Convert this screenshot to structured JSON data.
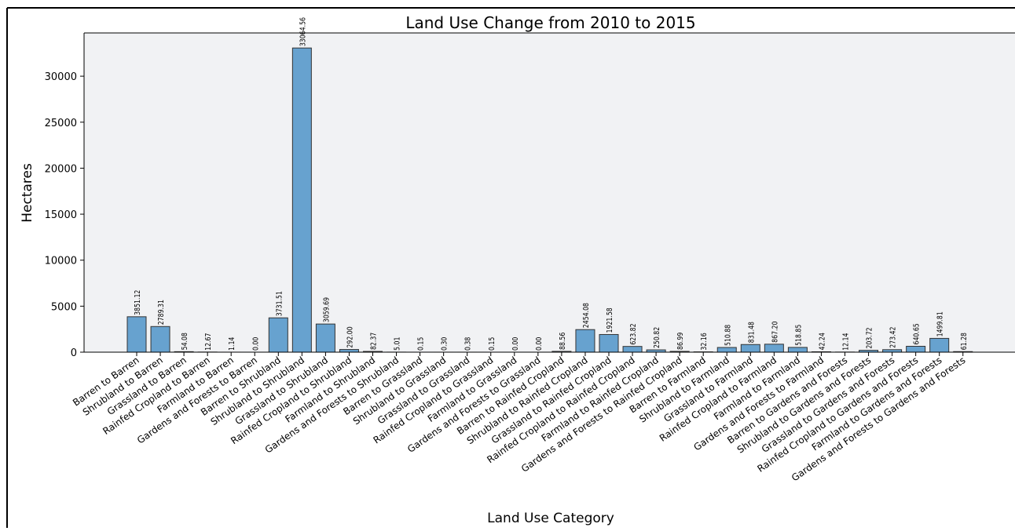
{
  "chart_data": {
    "type": "bar",
    "title": "Land Use Change from 2010 to 2015",
    "xlabel": "Land Use Category",
    "ylabel": "Hectares",
    "ylim": [
      0,
      34700
    ],
    "yticks": [
      0,
      5000,
      10000,
      15000,
      20000,
      25000,
      30000
    ],
    "grid": false,
    "bar_color": "#67a2cf",
    "bar_edge_color": "#333333",
    "plot_background": "#f1f2f4",
    "categories": [
      "Barren to Barren",
      "Shrubland to Barren",
      "Grassland to Barren",
      "Rainfed Cropland to Barren",
      "Farmland to Barren",
      "Gardens and Forests to Barren",
      "Barren to Shrubland",
      "Shrubland to Shrubland",
      "Grassland to Shrubland",
      "Rainfed Cropland to Shrubland",
      "Farmland to Shrubland",
      "Gardens and Forests to Shrubland",
      "Barren to Grassland",
      "Shrubland to Grassland",
      "Grassland to Grassland",
      "Rainfed Cropland to Grassland",
      "Farmland to Grassland",
      "Gardens and Forests to Grassland",
      "Barren to Rainfed Cropland",
      "Shrubland to Rainfed Cropland",
      "Grassland to Rainfed Cropland",
      "Rainfed Cropland to Rainfed Cropland",
      "Farmland to Rainfed Cropland",
      "Gardens and Forests to Rainfed Cropland",
      "Barren to Farmland",
      "Shrubland to Farmland",
      "Grassland to Farmland",
      "Rainfed Cropland to Farmland",
      "Farmland to Farmland",
      "Gardens and Forests to Farmland",
      "Barren to Gardens and Forests",
      "Shrubland to Gardens and Forests",
      "Grassland to Gardens and Forests",
      "Rainfed Cropland to Gardens and Forests",
      "Farmland to Gardens and Forests",
      "Gardens and Forests to Gardens and Forests"
    ],
    "values": [
      3851.12,
      2789.31,
      54.08,
      12.67,
      1.14,
      0.0,
      3731.51,
      33064.56,
      3059.69,
      292.0,
      82.37,
      5.01,
      0.15,
      0.3,
      0.38,
      0.15,
      0.0,
      0.0,
      88.56,
      2454.08,
      1921.58,
      623.82,
      250.82,
      86.99,
      32.16,
      510.88,
      831.48,
      867.2,
      518.85,
      42.24,
      12.14,
      203.72,
      273.42,
      640.65,
      1499.81,
      61.28
    ],
    "value_labels": [
      "3851.12",
      "2789.31",
      "54.08",
      "12.67",
      "1.14",
      "0.00",
      "3731.51",
      "33064.56",
      "3059.69",
      "292.00",
      "82.37",
      "5.01",
      "0.15",
      "0.30",
      "0.38",
      "0.15",
      "0.00",
      "0.00",
      "88.56",
      "2454.08",
      "1921.58",
      "623.82",
      "250.82",
      "86.99",
      "32.16",
      "510.88",
      "831.48",
      "867.20",
      "518.85",
      "42.24",
      "12.14",
      "203.72",
      "273.42",
      "640.65",
      "1499.81",
      "61.28"
    ]
  }
}
